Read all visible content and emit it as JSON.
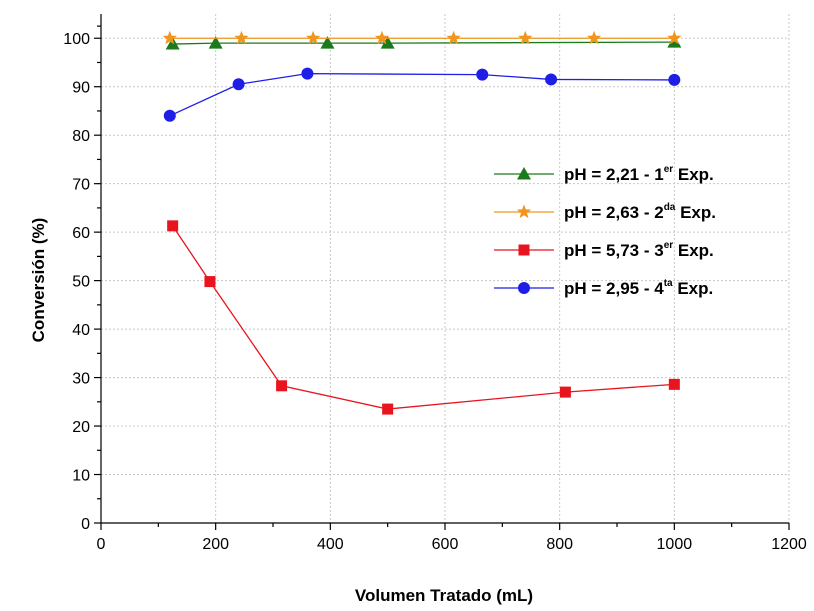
{
  "chart_data": {
    "type": "line",
    "title": "",
    "xlabel": "Volumen Tratado (mL)",
    "ylabel": "Conversión (%)",
    "xlim": [
      0,
      1200
    ],
    "ylim": [
      0,
      105
    ],
    "x_ticks": [
      0,
      200,
      400,
      600,
      800,
      1000,
      1200
    ],
    "y_ticks": [
      0,
      10,
      20,
      30,
      40,
      50,
      60,
      70,
      80,
      90,
      100
    ],
    "grid": true,
    "legend_position": "right",
    "series": [
      {
        "name": "pH = 2,21 - 1er Exp.",
        "legend": {
          "prefix": "pH = 2,21 - 1",
          "sup": "er",
          "suffix": " Exp."
        },
        "color": "#1b7a1b",
        "marker": "triangle",
        "x": [
          125,
          200,
          395,
          500,
          1000
        ],
        "y": [
          98.8,
          99.0,
          99.0,
          99.0,
          99.2
        ]
      },
      {
        "name": "pH = 2,63 - 2da Exp.",
        "legend": {
          "prefix": "pH = 2,63 - 2",
          "sup": "da",
          "suffix": " Exp."
        },
        "color": "#f0961e",
        "marker": "star",
        "x": [
          120,
          245,
          370,
          490,
          615,
          740,
          860,
          1000
        ],
        "y": [
          100,
          100,
          100,
          100,
          100,
          100,
          100,
          100
        ]
      },
      {
        "name": "pH = 5,73 - 3er Exp.",
        "legend": {
          "prefix": "pH = 5,73 - 3",
          "sup": "er",
          "suffix": " Exp."
        },
        "color": "#e8141e",
        "marker": "square",
        "x": [
          125,
          190,
          315,
          500,
          810,
          1000
        ],
        "y": [
          61.3,
          49.8,
          28.3,
          23.5,
          27.0,
          28.6
        ]
      },
      {
        "name": "pH = 2,95 - 4ta Exp.",
        "legend": {
          "prefix": "pH = 2,95 - 4",
          "sup": "ta",
          "suffix": " Exp."
        },
        "color": "#1e1ee6",
        "marker": "circle",
        "x": [
          120,
          240,
          360,
          665,
          785,
          1000
        ],
        "y": [
          84.0,
          90.5,
          92.7,
          92.5,
          91.5,
          91.4
        ]
      }
    ]
  }
}
